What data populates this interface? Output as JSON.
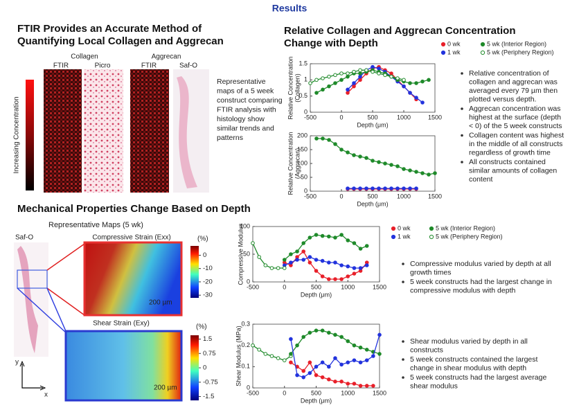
{
  "header": {
    "title": "Results"
  },
  "ftir": {
    "title": [
      "FTIR Provides an Accurate Method of",
      "Quantifying Local Collagen and Aggrecan"
    ],
    "groups": [
      "Collagen",
      "Aggrecan"
    ],
    "panels": [
      "FTIR",
      "Picro",
      "FTIR",
      "Saf-O"
    ],
    "scale_label": "Increasing Concentration",
    "caption": [
      "Representative",
      "maps of a 5 week",
      "construct comparing",
      "FTIR analysis with",
      "histology show",
      "similar trends and",
      "patterns"
    ]
  },
  "concentration": {
    "title": [
      "Relative Collagen and Aggrecan Concentration",
      "Change with Depth"
    ],
    "bullets": [
      [
        "Relative concentration of",
        "collagen and aggrecan was",
        "averaged every 79 µm then",
        "plotted versus depth."
      ],
      [
        "Aggrecan concentration was",
        "highest at the surface (depth",
        "< 0) of the 5 week constructs"
      ],
      [
        "Collagen content was highest",
        "in the middle of all constructs",
        "regardless of growth time"
      ],
      [
        "All constructs contained",
        "similar amounts of collagen",
        "content"
      ]
    ]
  },
  "mechanical": {
    "title": "Mechanical Properties Change Based on Depth",
    "maps_title": "Representative Maps (5 wk)",
    "safo": "Saf-O",
    "compressive": "Compressive Strain (Exx)",
    "shear": "Shear Strain (Exy)",
    "scale_bars": [
      "200 µm",
      "200 µm"
    ],
    "axes": [
      "y",
      "x"
    ],
    "bullets_compressive": [
      [
        "Compressive modulus varied by depth at all",
        "growth times"
      ],
      [
        "5 week constructs had the largest change in",
        "compressive modulus with depth"
      ]
    ],
    "bullets_shear": [
      [
        "Shear modulus varied by depth in all",
        "constructs"
      ],
      [
        "5 week constructs contained the largest",
        "change in shear modulus with depth"
      ],
      [
        "5 week constructs had the largest average",
        "shear modulus"
      ]
    ]
  },
  "colorbars": [
    {
      "unit": "(%)",
      "clim": [
        -32,
        7
      ],
      "ticks": [
        0,
        -10,
        -20,
        -30
      ]
    },
    {
      "unit": "(%)",
      "clim": [
        -1.7,
        1.7
      ],
      "ticks": [
        1.5,
        0.75,
        0,
        -0.75,
        -1.5
      ]
    }
  ],
  "chart_data": [
    {
      "type": "line",
      "x_label": "Depth (μm)",
      "y_label": [
        "Relative Concentration",
        "(Collagen)"
      ],
      "x": [
        -500,
        -400,
        -300,
        -200,
        -100,
        0,
        100,
        200,
        300,
        400,
        500,
        600,
        700,
        800,
        900,
        1000,
        1100,
        1200,
        1300,
        1400,
        1500
      ],
      "xlim": [
        -500,
        1500
      ],
      "xticks": [
        -500,
        0,
        500,
        1000,
        1500
      ],
      "ylim": [
        0,
        1.5
      ],
      "yticks": [
        0,
        0.5,
        1,
        1.5
      ],
      "legend": "upper right",
      "series": [
        {
          "name": "0 wk",
          "color": "#e8202a",
          "marker": "filled",
          "values": [
            null,
            null,
            null,
            null,
            null,
            null,
            0.6,
            0.8,
            1.0,
            1.2,
            1.35,
            1.4,
            1.3,
            1.2,
            1.0,
            0.8,
            0.6,
            0.4,
            null,
            null,
            null
          ]
        },
        {
          "name": "1 wk",
          "color": "#2233dd",
          "marker": "filled",
          "values": [
            null,
            null,
            null,
            null,
            null,
            null,
            0.7,
            0.9,
            1.1,
            1.3,
            1.4,
            1.35,
            1.25,
            1.1,
            0.95,
            0.8,
            0.6,
            0.45,
            0.3,
            null,
            null
          ]
        },
        {
          "name": "5 wk (Interior Region)",
          "color": "#1f8a2a",
          "marker": "filled",
          "values": [
            null,
            0.6,
            0.7,
            0.8,
            0.9,
            1.0,
            1.1,
            1.2,
            1.2,
            1.25,
            1.3,
            1.25,
            1.2,
            1.1,
            1.0,
            0.95,
            0.9,
            0.9,
            0.95,
            1.0,
            null
          ]
        },
        {
          "name": "5 wk (Periphery Region)",
          "color": "#1f8a2a",
          "marker": "open",
          "values": [
            0.9,
            1.0,
            1.05,
            1.1,
            1.15,
            1.2,
            1.2,
            1.25,
            1.3,
            1.3,
            1.25,
            1.2,
            1.15,
            1.1,
            1.05,
            1.0,
            null,
            null,
            null,
            null,
            null
          ]
        }
      ]
    },
    {
      "type": "line",
      "x_label": "Depth (μm)",
      "y_label": [
        "Relative Concentration",
        "(Aggrecan)"
      ],
      "x": [
        -500,
        -400,
        -300,
        -200,
        -100,
        0,
        100,
        200,
        300,
        400,
        500,
        600,
        700,
        800,
        900,
        1000,
        1100,
        1200,
        1300,
        1400,
        1500
      ],
      "xlim": [
        -500,
        1500
      ],
      "xticks": [
        -500,
        0,
        500,
        1000,
        1500
      ],
      "ylim": [
        0,
        200
      ],
      "yticks": [
        0,
        50,
        100,
        150,
        200
      ],
      "series": [
        {
          "color": "#1f8a2a",
          "marker": "filled",
          "values": [
            null,
            190,
            190,
            185,
            170,
            150,
            140,
            130,
            125,
            120,
            110,
            105,
            100,
            95,
            90,
            80,
            75,
            70,
            65,
            60,
            65
          ]
        },
        {
          "color": "#e8202a",
          "marker": "filled",
          "values": [
            null,
            null,
            null,
            null,
            null,
            null,
            8,
            8,
            8,
            8,
            8,
            8,
            8,
            8,
            8,
            8,
            8,
            8,
            null,
            null,
            null
          ]
        },
        {
          "color": "#2233dd",
          "marker": "filled",
          "values": [
            null,
            null,
            null,
            null,
            null,
            null,
            10,
            10,
            10,
            10,
            10,
            10,
            10,
            10,
            10,
            10,
            10,
            10,
            null,
            null,
            null
          ]
        }
      ]
    },
    {
      "type": "line",
      "x_label": "Depth (μm)",
      "y_label": [
        "Compressive Modulus"
      ],
      "x": [
        -500,
        -400,
        -300,
        -200,
        -100,
        0,
        100,
        200,
        300,
        400,
        500,
        600,
        700,
        800,
        900,
        1000,
        1100,
        1200,
        1300,
        1400,
        1500
      ],
      "xlim": [
        -500,
        1500
      ],
      "xticks": [
        -500,
        0,
        500,
        1000,
        1500
      ],
      "ylim": [
        0,
        100
      ],
      "yticks": [
        0,
        50,
        100
      ],
      "legend": "upper right",
      "series": [
        {
          "name": "0 wk",
          "color": "#e8202a",
          "marker": "filled",
          "values": [
            null,
            null,
            null,
            null,
            null,
            35,
            30,
            45,
            55,
            35,
            20,
            10,
            5,
            5,
            5,
            10,
            15,
            20,
            35,
            null,
            null
          ]
        },
        {
          "name": "1 wk",
          "color": "#2233dd",
          "marker": "filled",
          "values": [
            null,
            null,
            null,
            null,
            null,
            30,
            35,
            40,
            40,
            45,
            40,
            38,
            35,
            35,
            30,
            28,
            25,
            25,
            30,
            null,
            null
          ]
        },
        {
          "name": "5 wk (Interior Region)",
          "color": "#1f8a2a",
          "marker": "filled",
          "values": [
            null,
            null,
            null,
            null,
            null,
            40,
            50,
            55,
            70,
            80,
            85,
            83,
            82,
            80,
            85,
            75,
            70,
            60,
            65,
            null,
            null
          ]
        },
        {
          "name": "5 wk (Periphery Region)",
          "color": "#1f8a2a",
          "marker": "open",
          "values": [
            70,
            45,
            30,
            25,
            25,
            25,
            null,
            null,
            null,
            null,
            null,
            null,
            null,
            null,
            null,
            null,
            null,
            null,
            null,
            null,
            null
          ]
        }
      ]
    },
    {
      "type": "line",
      "x_label": "Depth (μm)",
      "y_label": [
        "Shear Modulus (MPa)"
      ],
      "x": [
        -500,
        -400,
        -300,
        -200,
        -100,
        0,
        100,
        200,
        300,
        400,
        500,
        600,
        700,
        800,
        900,
        1000,
        1100,
        1200,
        1300,
        1400,
        1500
      ],
      "xlim": [
        -500,
        1500
      ],
      "xticks": [
        -500,
        0,
        500,
        1000,
        1500
      ],
      "ylim": [
        0,
        0.3
      ],
      "yticks": [
        0,
        0.1,
        0.2,
        0.3
      ],
      "series": [
        {
          "color": "#1f8a2a",
          "marker": "open",
          "values": [
            0.2,
            0.18,
            0.16,
            0.15,
            0.14,
            0.13,
            0.15,
            null,
            null,
            null,
            null,
            null,
            null,
            null,
            null,
            null,
            null,
            null,
            null,
            null,
            null
          ]
        },
        {
          "color": "#1f8a2a",
          "marker": "filled",
          "values": [
            null,
            null,
            null,
            null,
            null,
            null,
            0.16,
            0.2,
            0.24,
            0.26,
            0.27,
            0.27,
            0.26,
            0.25,
            0.24,
            0.22,
            0.2,
            0.19,
            0.18,
            0.17,
            0.16
          ]
        },
        {
          "color": "#e8202a",
          "marker": "filled",
          "values": [
            null,
            null,
            null,
            null,
            null,
            null,
            0.12,
            0.1,
            0.08,
            0.12,
            0.06,
            0.05,
            0.04,
            0.03,
            0.03,
            0.02,
            0.02,
            0.01,
            0.01,
            0.01,
            null
          ]
        },
        {
          "color": "#2233dd",
          "marker": "filled",
          "values": [
            null,
            null,
            null,
            null,
            null,
            null,
            0.23,
            0.06,
            0.05,
            0.07,
            0.1,
            0.12,
            0.1,
            0.14,
            0.11,
            0.12,
            0.13,
            0.12,
            0.13,
            0.15,
            0.25
          ]
        }
      ]
    }
  ]
}
